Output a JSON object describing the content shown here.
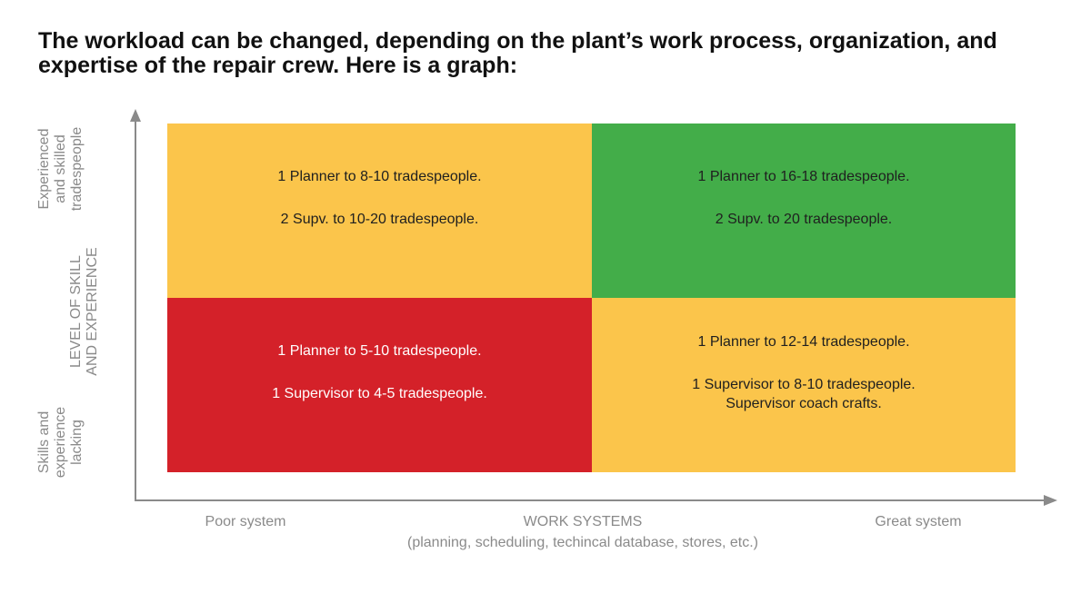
{
  "heading": {
    "line1": "The workload can be changed, depending on the plant’s work process, organization, and",
    "line2": "expertise of the repair crew. Here is a graph:"
  },
  "y_axis": {
    "title_line1": "LEVEL OF SKILL",
    "title_line2": "AND EXPERIENCE",
    "top_label": [
      "Experienced",
      "and skilled",
      "tradespeople"
    ],
    "bottom_label": [
      "Skills and",
      "experience",
      "lacking"
    ]
  },
  "x_axis": {
    "title": "WORK SYSTEMS",
    "subtitle": "(planning, scheduling, techincal database, stores, etc.)",
    "left_label": "Poor system",
    "right_label": "Great system"
  },
  "quadrants": {
    "top_left": {
      "color": "#fbc54b",
      "line1": "1 Planner to 8-10 tradespeople.",
      "line2": "2 Supv. to 10-20 tradespeople."
    },
    "top_right": {
      "color": "#43ad49",
      "line1": "1 Planner to 16-18 tradespeople.",
      "line2": "2 Supv. to 20 tradespeople."
    },
    "bottom_left": {
      "color": "#d42129",
      "line1": "1 Planner to 5-10 tradespeople.",
      "line2": "1 Supervisor to 4-5 tradespeople."
    },
    "bottom_right": {
      "color": "#fbc54b",
      "line1": "1 Planner to 12-14 tradespeople.",
      "line2": "1 Supervisor to 8-10 tradespeople.",
      "line3": "Supervisor coach crafts."
    }
  }
}
